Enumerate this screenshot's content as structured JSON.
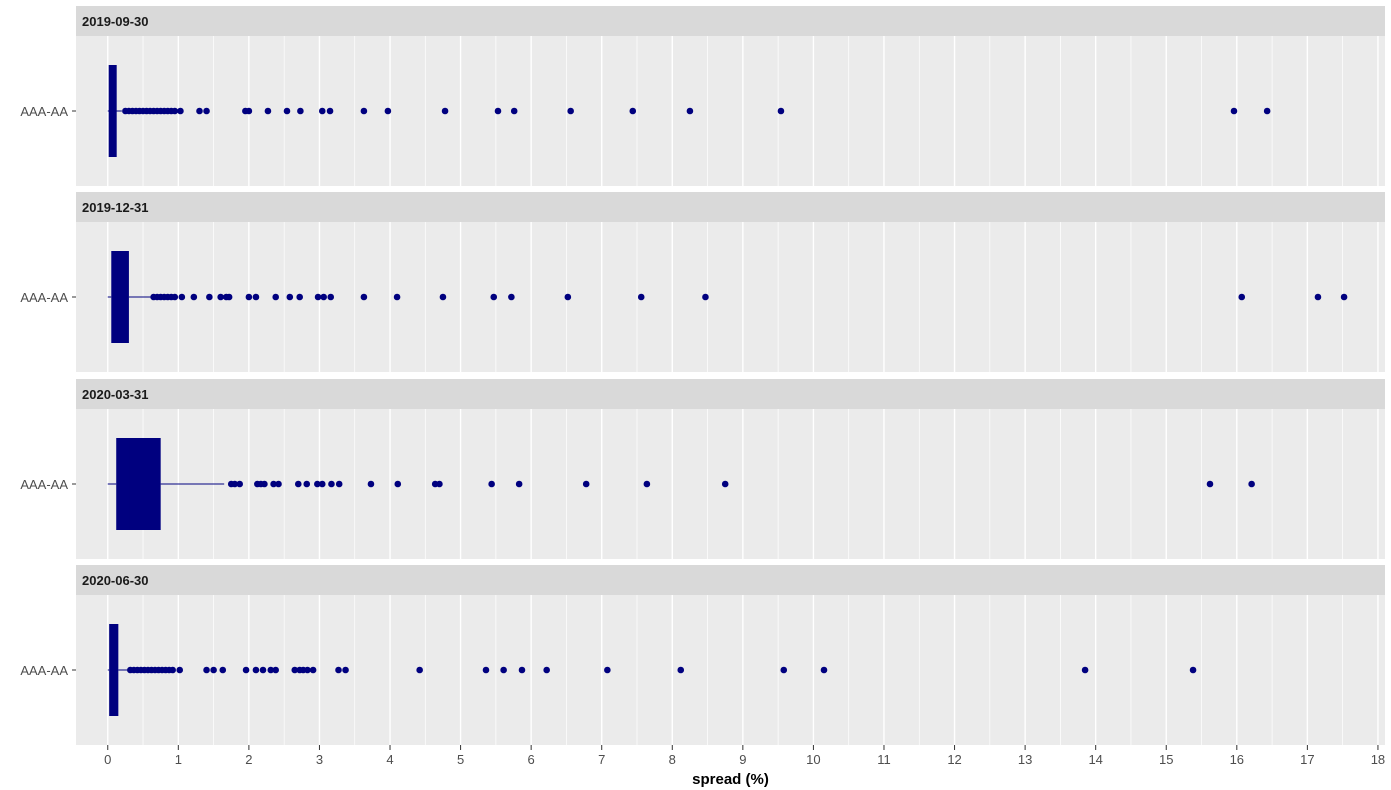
{
  "chart_data": {
    "type": "boxplot",
    "xlabel": "spread (%)",
    "xlim": [
      -0.45,
      18.1
    ],
    "x_ticks": [
      "0",
      "1",
      "2",
      "3",
      "4",
      "5",
      "6",
      "7",
      "8",
      "9",
      "10",
      "11",
      "12",
      "13",
      "14",
      "15",
      "16",
      "17",
      "18"
    ],
    "category": "AAA-AA",
    "color": "#00007f",
    "panel_bg": "#ebebeb",
    "strip_bg": "#d9d9d9",
    "grid": true,
    "facets": [
      {
        "label": "2019-09-30",
        "box": {
          "min": 0.0,
          "q1": 0.02,
          "median": 0.05,
          "q3": 0.12,
          "whisker_high": 0.2
        },
        "outliers": [
          0.25,
          0.3,
          0.35,
          0.4,
          0.45,
          0.5,
          0.55,
          0.6,
          0.65,
          0.7,
          0.75,
          0.8,
          0.85,
          0.9,
          0.95,
          1.03,
          1.3,
          1.4,
          1.95,
          2.0,
          2.27,
          2.54,
          2.73,
          3.04,
          3.15,
          3.63,
          3.97,
          4.78,
          5.53,
          5.76,
          6.56,
          7.44,
          8.25,
          9.54,
          15.96,
          16.43
        ]
      },
      {
        "label": "2019-12-31",
        "box": {
          "min": 0.0,
          "q1": 0.05,
          "median": 0.15,
          "q3": 0.3,
          "whisker_high": 0.62
        },
        "outliers": [
          0.65,
          0.7,
          0.75,
          0.8,
          0.85,
          0.9,
          0.95,
          1.05,
          1.22,
          1.44,
          1.6,
          1.68,
          1.72,
          2.0,
          2.1,
          2.38,
          2.58,
          2.72,
          2.98,
          3.06,
          3.16,
          3.63,
          4.1,
          4.75,
          5.47,
          5.72,
          6.52,
          7.56,
          8.47,
          16.07,
          17.15,
          17.52
        ]
      },
      {
        "label": "2020-03-31",
        "box": {
          "min": 0.0,
          "q1": 0.12,
          "median": 0.3,
          "q3": 0.75,
          "whisker_high": 1.65
        },
        "outliers": [
          1.75,
          1.8,
          1.87,
          2.12,
          2.17,
          2.22,
          2.35,
          2.42,
          2.7,
          2.82,
          2.97,
          3.04,
          3.17,
          3.28,
          3.73,
          4.11,
          4.64,
          4.7,
          5.44,
          5.83,
          6.78,
          7.64,
          8.75,
          15.62,
          16.21
        ]
      },
      {
        "label": "2020-06-30",
        "box": {
          "min": 0.0,
          "q1": 0.02,
          "median": 0.06,
          "q3": 0.15,
          "whisker_high": 0.28
        },
        "outliers": [
          0.32,
          0.37,
          0.42,
          0.47,
          0.52,
          0.57,
          0.62,
          0.67,
          0.72,
          0.77,
          0.82,
          0.87,
          0.92,
          1.02,
          1.4,
          1.5,
          1.63,
          1.96,
          2.1,
          2.2,
          2.31,
          2.38,
          2.65,
          2.72,
          2.77,
          2.83,
          2.91,
          3.27,
          3.37,
          4.42,
          5.36,
          5.61,
          5.87,
          6.22,
          7.08,
          8.12,
          9.58,
          10.15,
          13.85,
          15.38
        ]
      }
    ]
  }
}
